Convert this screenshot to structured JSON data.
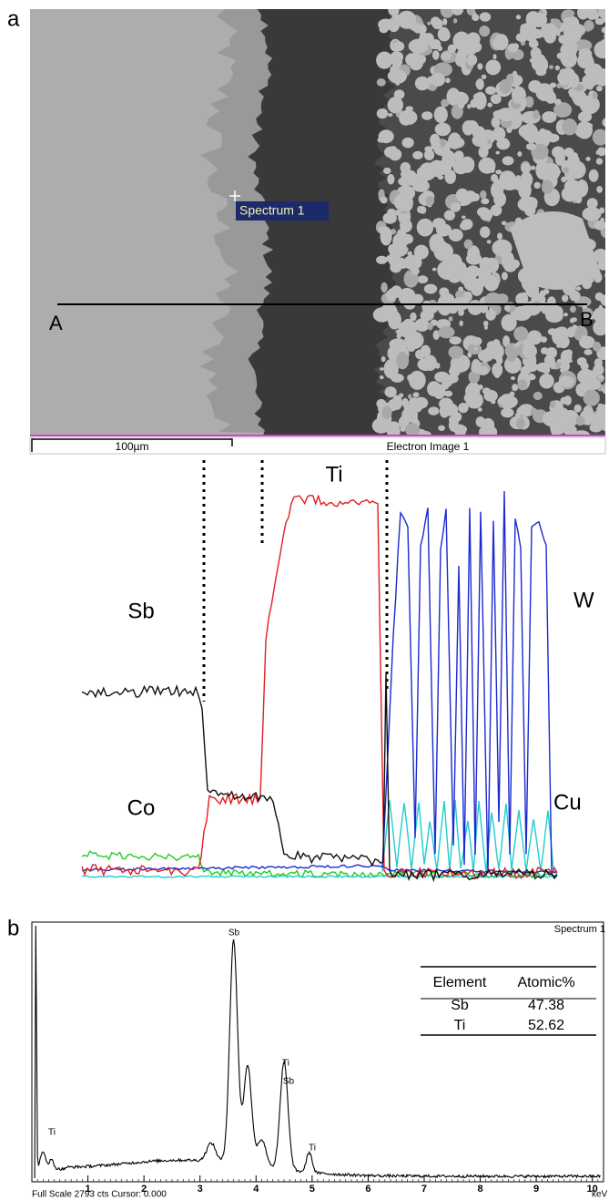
{
  "panel_a": {
    "label": "a",
    "marker_label": "Spectrum 1",
    "line_start": "A",
    "line_end": "B",
    "scale_bar": "100µm",
    "caption": "Electron Image 1"
  },
  "line_scan": {
    "labels": [
      "Ti",
      "W",
      "Sb",
      "Co",
      "Cu"
    ]
  },
  "panel_b": {
    "label": "b"
  },
  "chart_data": {
    "type": "line",
    "title": "Spectrum 1",
    "x_label": "keV",
    "xlim": [
      0,
      10.2
    ],
    "xticks": [
      1,
      2,
      3,
      4,
      5,
      6,
      7,
      8,
      9,
      10
    ],
    "footer": "Full Scale 2793 cts Cursor: 0.000",
    "peak_labels": [
      "Ti",
      "Sb",
      "Ti",
      "Sb",
      "Ti"
    ],
    "table": {
      "header": [
        "Element",
        "Atomic%"
      ],
      "rows": [
        [
          "Sb",
          "47.38"
        ],
        [
          "Ti",
          "52.62"
        ]
      ]
    }
  }
}
